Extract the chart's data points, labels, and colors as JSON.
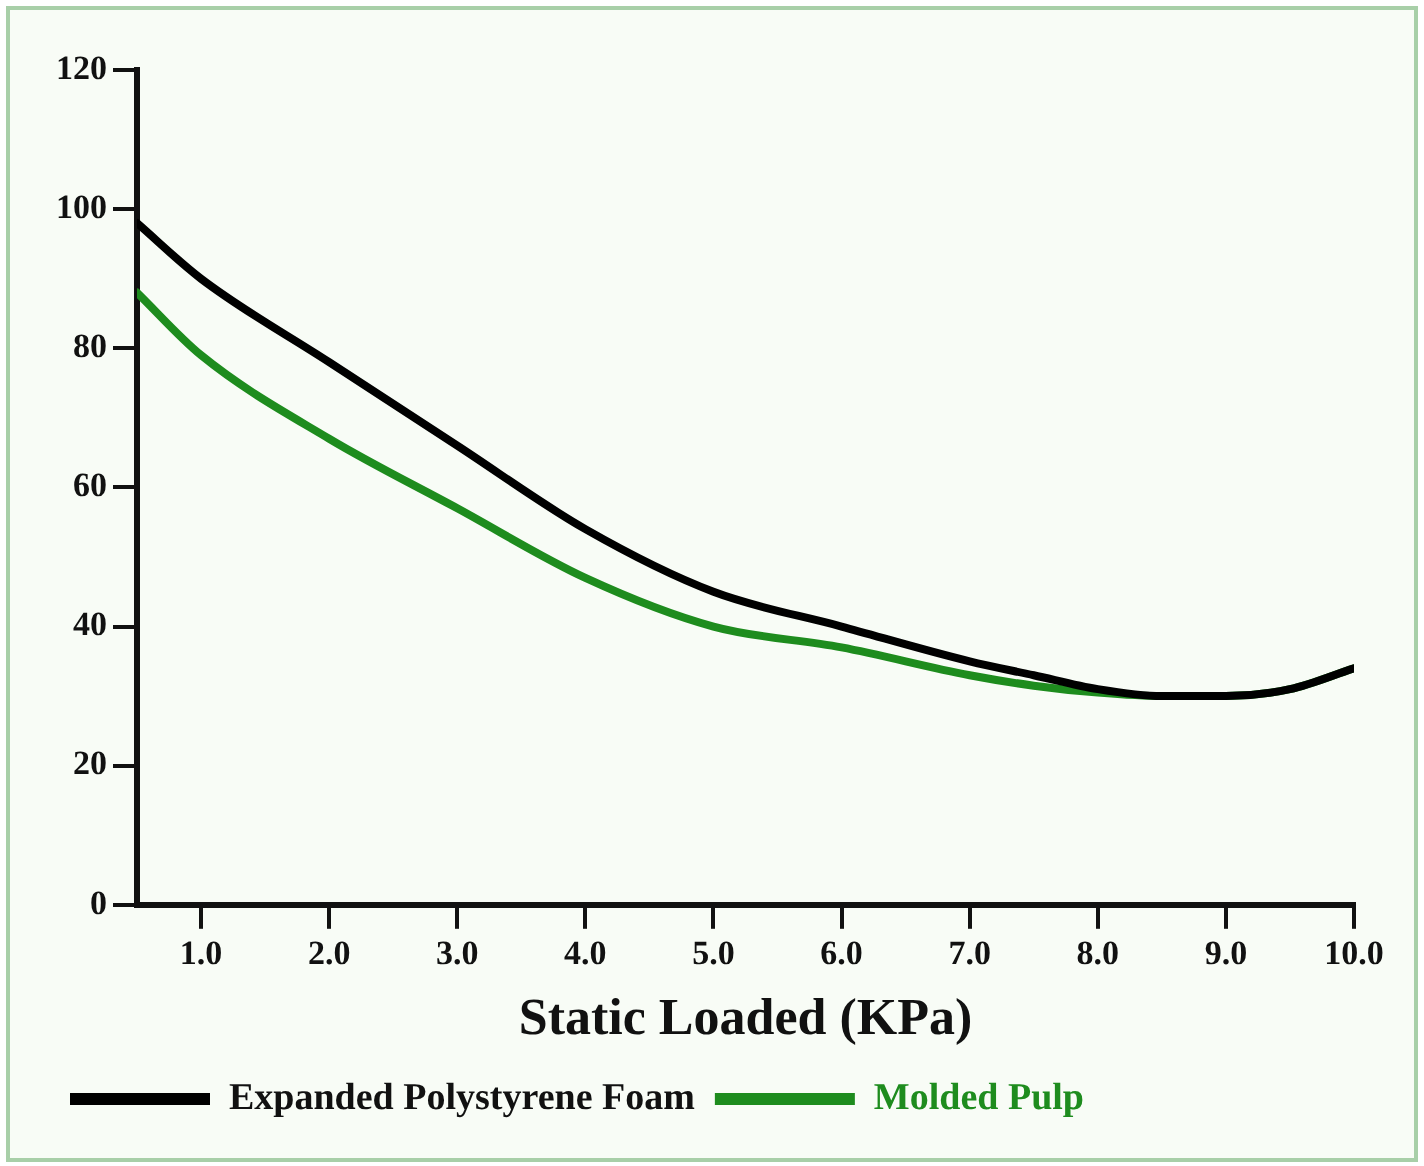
{
  "chart_data": {
    "type": "line",
    "xlabel": "Static Loaded (KPa)",
    "xlim": [
      0.5,
      10
    ],
    "xticks": [
      {
        "value": 1,
        "label": "1.0"
      },
      {
        "value": 2,
        "label": "2.0"
      },
      {
        "value": 3,
        "label": "3.0"
      },
      {
        "value": 4,
        "label": "4.0"
      },
      {
        "value": 5,
        "label": "5.0"
      },
      {
        "value": 6,
        "label": "6.0"
      },
      {
        "value": 7,
        "label": "7.0"
      },
      {
        "value": 8,
        "label": "8.0"
      },
      {
        "value": 9,
        "label": "9.0"
      },
      {
        "value": 10,
        "label": "10.0"
      }
    ],
    "ylim": [
      0,
      120
    ],
    "yticks": [
      0,
      20,
      40,
      60,
      80,
      100,
      120
    ],
    "x": [
      0.5,
      1,
      2,
      3,
      4,
      5,
      6,
      7,
      7.5,
      8,
      8.5,
      9,
      9.5,
      10
    ],
    "series": [
      {
        "name": "Expanded Polystyrene Foam",
        "color": "#000000",
        "values": [
          98,
          90,
          78,
          66,
          54,
          45,
          40,
          35,
          33,
          31,
          30,
          30,
          31,
          34
        ]
      },
      {
        "name": "Molded Pulp",
        "color": "#1e8c1e",
        "values": [
          88,
          79,
          67,
          57,
          47,
          40,
          37,
          33,
          31.5,
          30.5,
          30,
          30,
          31,
          34
        ]
      }
    ],
    "grid": false,
    "legend": "bottom",
    "marker": "none",
    "line_style": "solid"
  }
}
